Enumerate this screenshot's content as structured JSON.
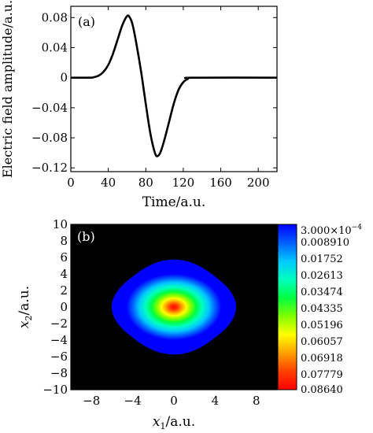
{
  "chart_data": [
    {
      "type": "line",
      "panel_label": "(a)",
      "xlabel": "Time/a.u.",
      "ylabel": "Electric field amplitude/a.u.",
      "xlim": [
        0,
        220
      ],
      "ylim": [
        -0.125,
        0.095
      ],
      "xticks": [
        0,
        40,
        80,
        120,
        160,
        200
      ],
      "yticks": [
        0.08,
        0.04,
        0,
        -0.04,
        -0.08,
        -0.12
      ],
      "ytick_labels": [
        "0.08",
        "0.04",
        "0",
        "−0.04",
        "−0.08",
        "−0.12"
      ],
      "grid": false,
      "series": [
        {
          "values_xy": [
            [
              0,
              0
            ],
            [
              20,
              0
            ],
            [
              25,
              0.0008
            ],
            [
              30,
              0.003
            ],
            [
              35,
              0.008
            ],
            [
              40,
              0.017
            ],
            [
              45,
              0.032
            ],
            [
              50,
              0.051
            ],
            [
              55,
              0.07
            ],
            [
              60,
              0.082
            ],
            [
              63,
              0.08
            ],
            [
              66,
              0.07
            ],
            [
              70,
              0.045
            ],
            [
              75,
              0.008
            ],
            [
              80,
              -0.035
            ],
            [
              85,
              -0.075
            ],
            [
              90,
              -0.101
            ],
            [
              93,
              -0.104
            ],
            [
              96,
              -0.098
            ],
            [
              100,
              -0.082
            ],
            [
              105,
              -0.058
            ],
            [
              110,
              -0.034
            ],
            [
              115,
              -0.016
            ],
            [
              120,
              -0.006
            ],
            [
              125,
              -0.0015
            ],
            [
              130,
              0
            ],
            [
              220,
              0
            ]
          ],
          "color": "#000000"
        }
      ]
    },
    {
      "type": "heatmap",
      "panel_label": "(b)",
      "xlabel_var": "x",
      "xlabel_sub": "1",
      "xlabel_unit": "/a.u.",
      "ylabel_var": "x",
      "ylabel_sub": "2",
      "ylabel_unit": "/a.u.",
      "xlim": [
        -10,
        10
      ],
      "ylim": [
        -10,
        10
      ],
      "xticks": [
        -8,
        -4,
        0,
        4,
        8
      ],
      "xtick_labels": [
        "−8",
        "−4",
        "0",
        "4",
        "8"
      ],
      "yticks": [
        10,
        8,
        6,
        4,
        2,
        0,
        -2,
        -4,
        -6,
        -8,
        -10
      ],
      "ytick_labels": [
        "10",
        "8",
        "6",
        "4",
        "2",
        "0",
        "−2",
        "−4",
        "−6",
        "−8",
        "−10"
      ],
      "background_color": "#000000",
      "peak_center": [
        0,
        0
      ],
      "peak_value": 0.0864,
      "support_half_width": 5.3,
      "colorbar": {
        "min": 0.0003,
        "max": 0.0864,
        "top_label_mantissa": "3.000×10",
        "top_label_exp": "−4",
        "labels": [
          "0.008910",
          "0.01752",
          "0.02613",
          "0.03474",
          "0.04335",
          "0.05196",
          "0.06057",
          "0.06918",
          "0.07779",
          "0.08640"
        ],
        "label_values": [
          0.00891,
          0.01752,
          0.02613,
          0.03474,
          0.04335,
          0.05196,
          0.06057,
          0.06918,
          0.07779,
          0.0864
        ],
        "colors": [
          "#0000ff",
          "#0060ff",
          "#00c8ff",
          "#00ffc0",
          "#00ff40",
          "#80ff00",
          "#ffff00",
          "#ffa000",
          "#ff4000",
          "#ff0000"
        ]
      }
    }
  ]
}
